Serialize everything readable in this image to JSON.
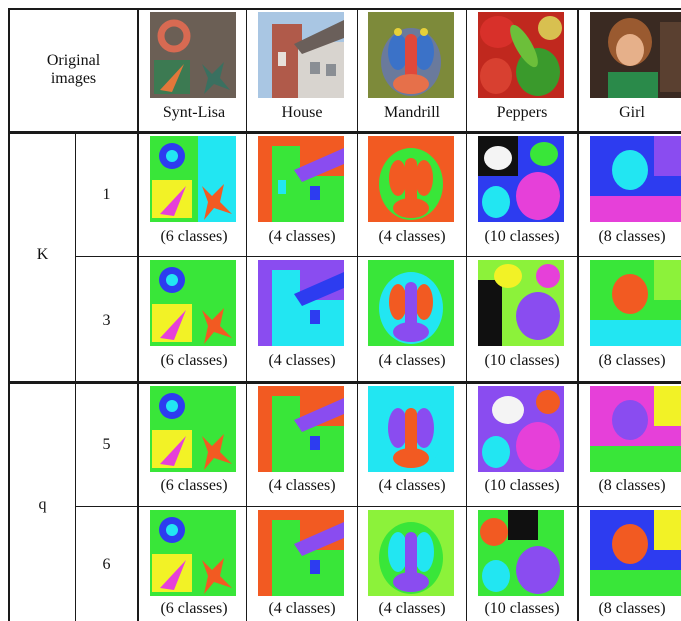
{
  "header": {
    "original_label": "Original\nimages",
    "columns": [
      "Synt-Lisa",
      "House",
      "Mandrill",
      "Peppers",
      "Girl"
    ]
  },
  "groups": [
    {
      "label": "K",
      "rows": [
        {
          "param": "1",
          "captions": [
            "(6 classes)",
            "(4 classes)",
            "(4 classes)",
            "(10 classes)",
            "(8 classes)"
          ]
        },
        {
          "param": "3",
          "captions": [
            "(6 classes)",
            "(4 classes)",
            "(4 classes)",
            "(10 classes)",
            "(8 classes)"
          ]
        }
      ]
    },
    {
      "label": "q",
      "rows": [
        {
          "param": "5",
          "captions": [
            "(6 classes)",
            "(4 classes)",
            "(4 classes)",
            "(10 classes)",
            "(8 classes)"
          ]
        },
        {
          "param": "6",
          "captions": [
            "(6 classes)",
            "(4 classes)",
            "(4 classes)",
            "(10 classes)",
            "(8 classes)"
          ]
        }
      ]
    }
  ],
  "palette": {
    "green": "#39e639",
    "blue": "#2d3cf0",
    "cyan": "#22e6f2",
    "yellow": "#f2f226",
    "orange": "#f25a22",
    "magenta": "#e640d9",
    "purple": "#8a4cf0",
    "lime": "#8cf23a",
    "white": "#f4f4f4",
    "black": "#101010"
  }
}
